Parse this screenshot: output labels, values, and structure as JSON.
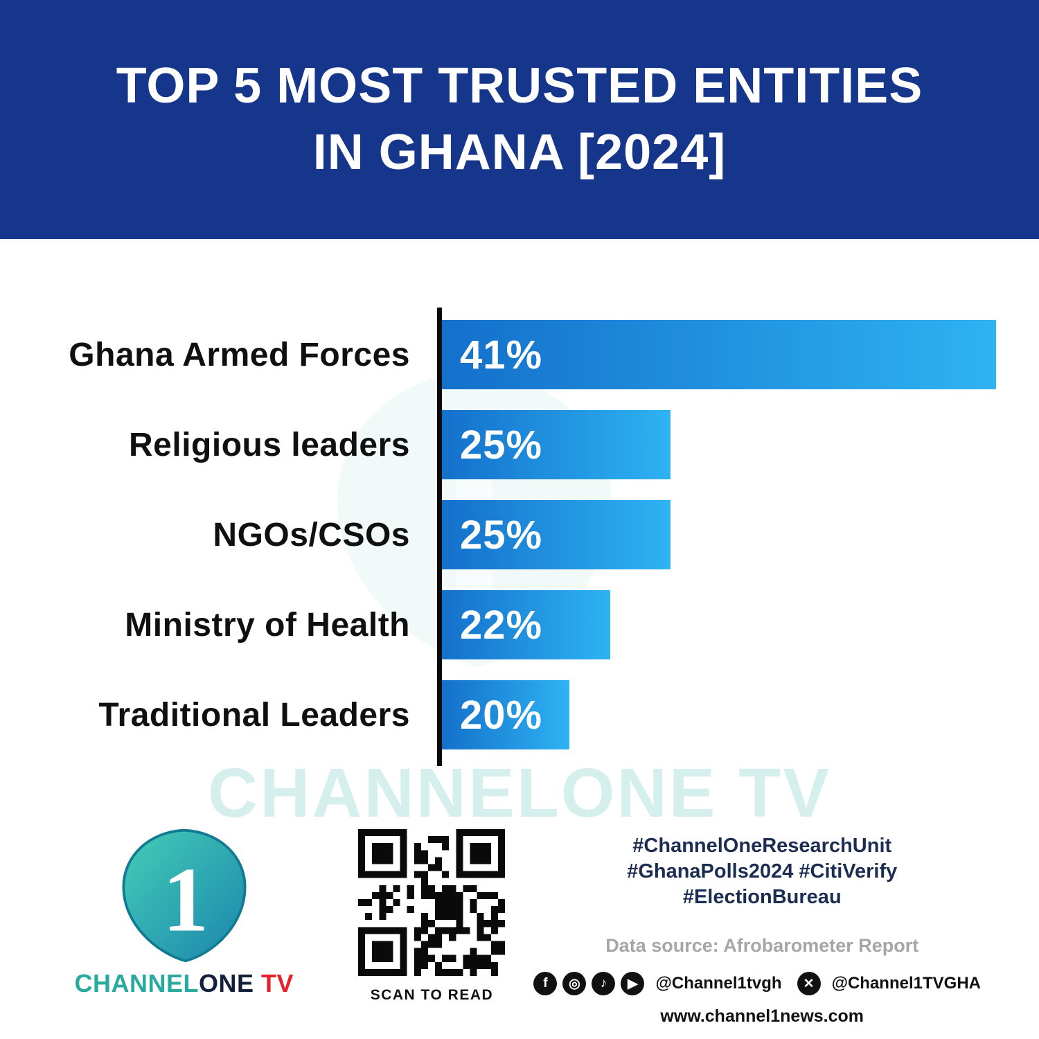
{
  "header": {
    "title_line1": "TOP 5 MOST TRUSTED ENTITIES",
    "title_line2": "IN GHANA [2024]"
  },
  "chart_data": {
    "type": "bar",
    "orientation": "horizontal",
    "title": "Top 5 Most Trusted Entities in Ghana [2024]",
    "categories": [
      "Ghana Armed Forces",
      "Religious leaders",
      "NGOs/CSOs",
      "Ministry of Health",
      "Traditional Leaders"
    ],
    "values": [
      41,
      25,
      25,
      22,
      20
    ],
    "value_labels": [
      "41%",
      "25%",
      "25%",
      "22%",
      "20%"
    ],
    "bar_display_widths_pct": [
      100,
      41.3,
      41.3,
      30.4,
      23.0
    ],
    "xlabel": "",
    "ylabel": "",
    "grid": false,
    "legend": false,
    "bar_gradient_start": "#1470cb",
    "bar_gradient_end": "#2eb3f3",
    "axis_color": "#0b0b0b"
  },
  "watermark": {
    "text": "CHANNELONE TV"
  },
  "footer": {
    "logo": {
      "numeral": "1",
      "brand_channel": "CHANNEL",
      "brand_one": "ONE",
      "brand_tv": " TV"
    },
    "qr_caption": "SCAN TO READ",
    "hashtags_line1": "#ChannelOneResearchUnit",
    "hashtags_line2": "#GhanaPolls2024 #CitiVerify",
    "hashtags_line3": "#ElectionBureau",
    "data_source": "Data source: Afrobarometer Report",
    "social_icons": [
      "facebook",
      "instagram",
      "tiktok",
      "youtube"
    ],
    "social_handle1": "@Channel1tvgh",
    "social_icon_x": "x",
    "social_handle2": "@Channel1TVGHA",
    "website": "www.channel1news.com"
  },
  "colors": {
    "header_background": "#16368c",
    "title_text": "#ffffff",
    "label_text": "#101010",
    "hashtag_text": "#1c2d52",
    "data_source_text": "#a6a6a6",
    "brand_teal": "#2aa99e",
    "brand_navy": "#14213d",
    "brand_red": "#e62129",
    "watermark_teal": "#2eada3"
  }
}
